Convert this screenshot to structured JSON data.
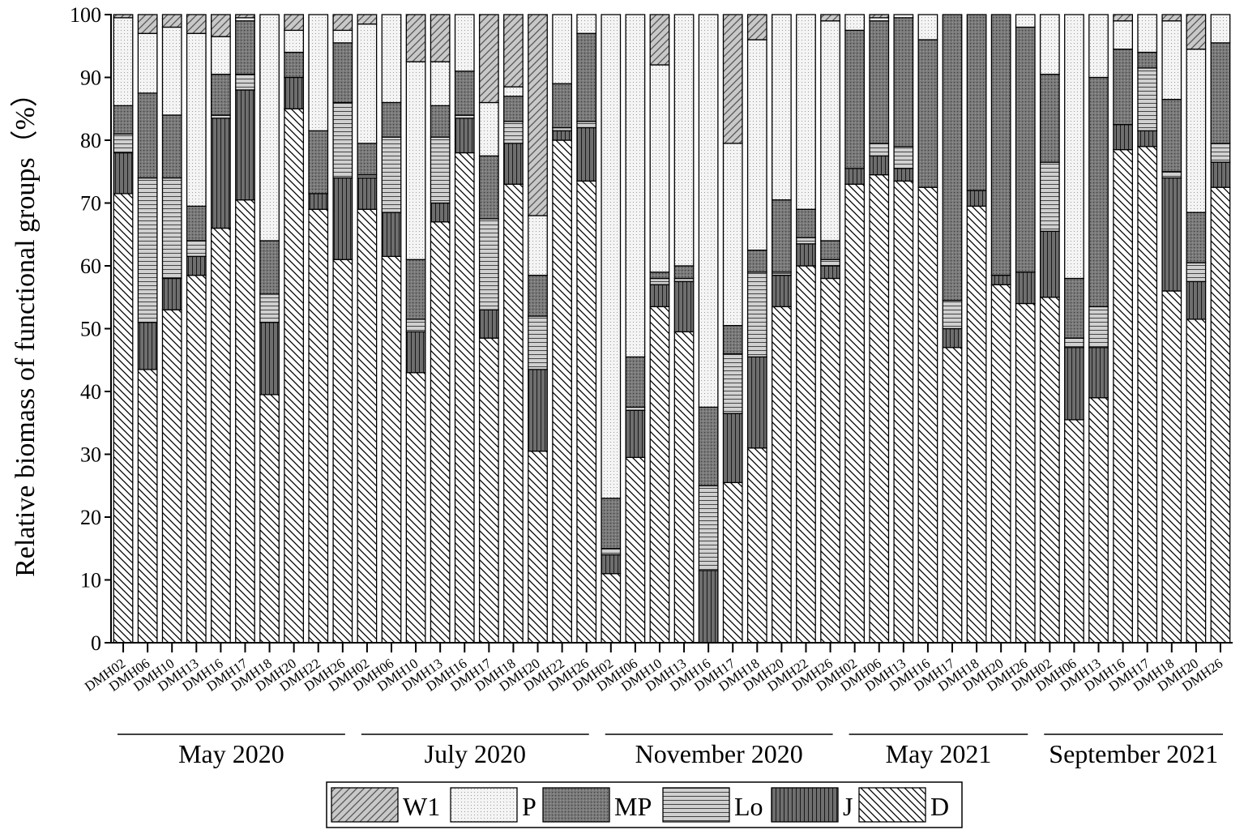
{
  "chart_data": {
    "type": "bar",
    "stacked": true,
    "ylabel": "Relative biomass of functional groups（%）",
    "ylim": [
      0,
      100
    ],
    "yticks": [
      0,
      10,
      20,
      30,
      40,
      50,
      60,
      70,
      80,
      90,
      100
    ],
    "grid": false,
    "legend_position": "bottom",
    "groups": [
      {
        "label": "May 2020",
        "sites": [
          "DMH02",
          "DMH06",
          "DMH10",
          "DMH13",
          "DMH16",
          "DMH17",
          "DMH18",
          "DMH20",
          "DMH22",
          "DMH26"
        ]
      },
      {
        "label": "July 2020",
        "sites": [
          "DMH02",
          "DMH06",
          "DMH10",
          "DMH13",
          "DMH16",
          "DMH17",
          "DMH18",
          "DMH20",
          "DMH22",
          "DMH26"
        ]
      },
      {
        "label": "November 2020",
        "sites": [
          "DMH02",
          "DMH06",
          "DMH10",
          "DMH13",
          "DMH16",
          "DMH17",
          "DMH18",
          "DMH20",
          "DMH22",
          "DMH26"
        ]
      },
      {
        "label": "May 2021",
        "sites": [
          "DMH02",
          "DMH06",
          "DMH13",
          "DMH16",
          "DMH17",
          "DMH18",
          "DMH20",
          "DMH26"
        ]
      },
      {
        "label": "September 2021",
        "sites": [
          "DMH02",
          "DMH06",
          "DMH13",
          "DMH16",
          "DMH17",
          "DMH18",
          "DMH20",
          "DMH26"
        ]
      }
    ],
    "series_order": [
      "D",
      "J",
      "Lo",
      "MP",
      "P",
      "W1"
    ],
    "series": [
      {
        "name": "W1",
        "fill": "#c8c8c8",
        "pattern": "diag-fwd"
      },
      {
        "name": "P",
        "fill": "#f4f4f4",
        "pattern": "dots"
      },
      {
        "name": "MP",
        "fill": "#7a7a7a",
        "pattern": "dots-dark"
      },
      {
        "name": "Lo",
        "fill": "#d0d0d0",
        "pattern": "horiz"
      },
      {
        "name": "J",
        "fill": "#6e6e6e",
        "pattern": "vert"
      },
      {
        "name": "D",
        "fill": "#ffffff",
        "pattern": "diag-back"
      }
    ],
    "bars": [
      {
        "D": 71.5,
        "J": 6.5,
        "Lo": 3.0,
        "MP": 4.5,
        "P": 14.0,
        "W1": 0.5
      },
      {
        "D": 43.5,
        "J": 7.5,
        "Lo": 23.0,
        "MP": 13.5,
        "P": 9.5,
        "W1": 3.0
      },
      {
        "D": 53.0,
        "J": 5.0,
        "Lo": 16.0,
        "MP": 10.0,
        "P": 14.0,
        "W1": 2.0
      },
      {
        "D": 58.5,
        "J": 3.0,
        "Lo": 2.5,
        "MP": 5.5,
        "P": 27.5,
        "W1": 3.0
      },
      {
        "D": 66.0,
        "J": 17.5,
        "Lo": 0.5,
        "MP": 6.5,
        "P": 6.0,
        "W1": 3.5
      },
      {
        "D": 70.5,
        "J": 17.5,
        "Lo": 2.5,
        "MP": 8.5,
        "P": 0.5,
        "W1": 0.5
      },
      {
        "D": 39.5,
        "J": 11.5,
        "Lo": 4.5,
        "MP": 8.5,
        "P": 36.0,
        "W1": 0.0
      },
      {
        "D": 85.0,
        "J": 5.0,
        "Lo": 0.0,
        "MP": 4.0,
        "P": 3.5,
        "W1": 2.5
      },
      {
        "D": 69.0,
        "J": 2.5,
        "Lo": 0.0,
        "MP": 10.0,
        "P": 18.5,
        "W1": 0.0
      },
      {
        "D": 61.0,
        "J": 13.0,
        "Lo": 12.0,
        "MP": 9.5,
        "P": 2.0,
        "W1": 2.5
      },
      {
        "D": 69.0,
        "J": 5.0,
        "Lo": 0.5,
        "MP": 5.0,
        "P": 19.0,
        "W1": 1.5
      },
      {
        "D": 61.5,
        "J": 7.0,
        "Lo": 12.0,
        "MP": 5.5,
        "P": 14.0,
        "W1": 0.0
      },
      {
        "D": 43.0,
        "J": 6.5,
        "Lo": 2.0,
        "MP": 9.5,
        "P": 31.5,
        "W1": 7.5
      },
      {
        "D": 67.0,
        "J": 3.0,
        "Lo": 10.5,
        "MP": 5.0,
        "P": 7.0,
        "W1": 7.5
      },
      {
        "D": 78.0,
        "J": 5.5,
        "Lo": 0.5,
        "MP": 7.0,
        "P": 9.0,
        "W1": 0.0
      },
      {
        "D": 48.5,
        "J": 4.5,
        "Lo": 14.5,
        "MP": 10.0,
        "P": 8.5,
        "W1": 14.0
      },
      {
        "D": 73.0,
        "J": 6.5,
        "Lo": 3.5,
        "MP": 4.0,
        "P": 1.5,
        "W1": 11.5
      },
      {
        "D": 30.5,
        "J": 13.0,
        "Lo": 8.5,
        "MP": 6.5,
        "P": 9.5,
        "W1": 32.0
      },
      {
        "D": 80.0,
        "J": 1.5,
        "Lo": 0.5,
        "MP": 7.0,
        "P": 11.0,
        "W1": 0.0
      },
      {
        "D": 73.5,
        "J": 8.5,
        "Lo": 1.0,
        "MP": 14.0,
        "P": 3.0,
        "W1": 0.0
      },
      {
        "D": 11.0,
        "J": 3.0,
        "Lo": 1.0,
        "MP": 8.0,
        "P": 77.0,
        "W1": 0.0
      },
      {
        "D": 29.5,
        "J": 7.5,
        "Lo": 0.5,
        "MP": 8.0,
        "P": 54.5,
        "W1": 0.0
      },
      {
        "D": 53.5,
        "J": 3.5,
        "Lo": 1.0,
        "MP": 1.0,
        "P": 33.0,
        "W1": 8.0
      },
      {
        "D": 49.5,
        "J": 8.0,
        "Lo": 0.5,
        "MP": 2.0,
        "P": 40.0,
        "W1": 0.0
      },
      {
        "D": 0.0,
        "J": 11.5,
        "Lo": 13.5,
        "MP": 12.5,
        "P": 62.5,
        "W1": 0.0
      },
      {
        "D": 25.5,
        "J": 11.0,
        "Lo": 9.5,
        "MP": 4.5,
        "P": 29.0,
        "W1": 20.5
      },
      {
        "D": 31.0,
        "J": 14.5,
        "Lo": 13.5,
        "MP": 3.5,
        "P": 33.5,
        "W1": 4.0
      },
      {
        "D": 53.5,
        "J": 5.0,
        "Lo": 0.5,
        "MP": 11.5,
        "P": 29.5,
        "W1": 0.0
      },
      {
        "D": 60.0,
        "J": 3.5,
        "Lo": 1.0,
        "MP": 4.5,
        "P": 31.0,
        "W1": 0.0
      },
      {
        "D": 58.0,
        "J": 2.0,
        "Lo": 1.0,
        "MP": 3.0,
        "P": 35.0,
        "W1": 1.0
      },
      {
        "D": 73.0,
        "J": 2.5,
        "Lo": 0.0,
        "MP": 22.0,
        "P": 2.5,
        "W1": 0.0
      },
      {
        "D": 74.5,
        "J": 3.0,
        "Lo": 2.0,
        "MP": 19.5,
        "P": 0.5,
        "W1": 0.5
      },
      {
        "D": 73.5,
        "J": 2.0,
        "Lo": 3.5,
        "MP": 20.5,
        "P": 0.5,
        "W1": 0.0
      },
      {
        "D": 72.5,
        "J": 0.0,
        "Lo": 0.0,
        "MP": 23.5,
        "P": 4.0,
        "W1": 0.0
      },
      {
        "D": 47.0,
        "J": 3.0,
        "Lo": 4.5,
        "MP": 45.5,
        "P": 0.0,
        "W1": 0.0
      },
      {
        "D": 69.5,
        "J": 2.5,
        "Lo": 0.0,
        "MP": 28.0,
        "P": 0.0,
        "W1": 0.0
      },
      {
        "D": 57.0,
        "J": 1.5,
        "Lo": 0.0,
        "MP": 41.5,
        "P": 0.0,
        "W1": 0.0
      },
      {
        "D": 54.0,
        "J": 5.0,
        "Lo": 0.0,
        "MP": 39.0,
        "P": 2.0,
        "W1": 0.0
      },
      {
        "D": 55.0,
        "J": 10.5,
        "Lo": 11.0,
        "MP": 14.0,
        "P": 9.5,
        "W1": 0.0
      },
      {
        "D": 35.5,
        "J": 11.5,
        "Lo": 1.5,
        "MP": 9.5,
        "P": 42.0,
        "W1": 0.0
      },
      {
        "D": 39.0,
        "J": 8.0,
        "Lo": 6.5,
        "MP": 36.5,
        "P": 10.0,
        "W1": 0.0
      },
      {
        "D": 78.5,
        "J": 4.0,
        "Lo": 0.0,
        "MP": 12.0,
        "P": 4.5,
        "W1": 1.0
      },
      {
        "D": 79.0,
        "J": 2.5,
        "Lo": 10.0,
        "MP": 2.5,
        "P": 6.0,
        "W1": 0.0
      },
      {
        "D": 56.0,
        "J": 18.0,
        "Lo": 1.0,
        "MP": 11.5,
        "P": 12.5,
        "W1": 1.0
      },
      {
        "D": 51.5,
        "J": 6.0,
        "Lo": 3.0,
        "MP": 8.0,
        "P": 26.0,
        "W1": 5.5
      },
      {
        "D": 72.5,
        "J": 4.0,
        "Lo": 3.0,
        "MP": 16.0,
        "P": 4.5,
        "W1": 0.0
      }
    ]
  }
}
